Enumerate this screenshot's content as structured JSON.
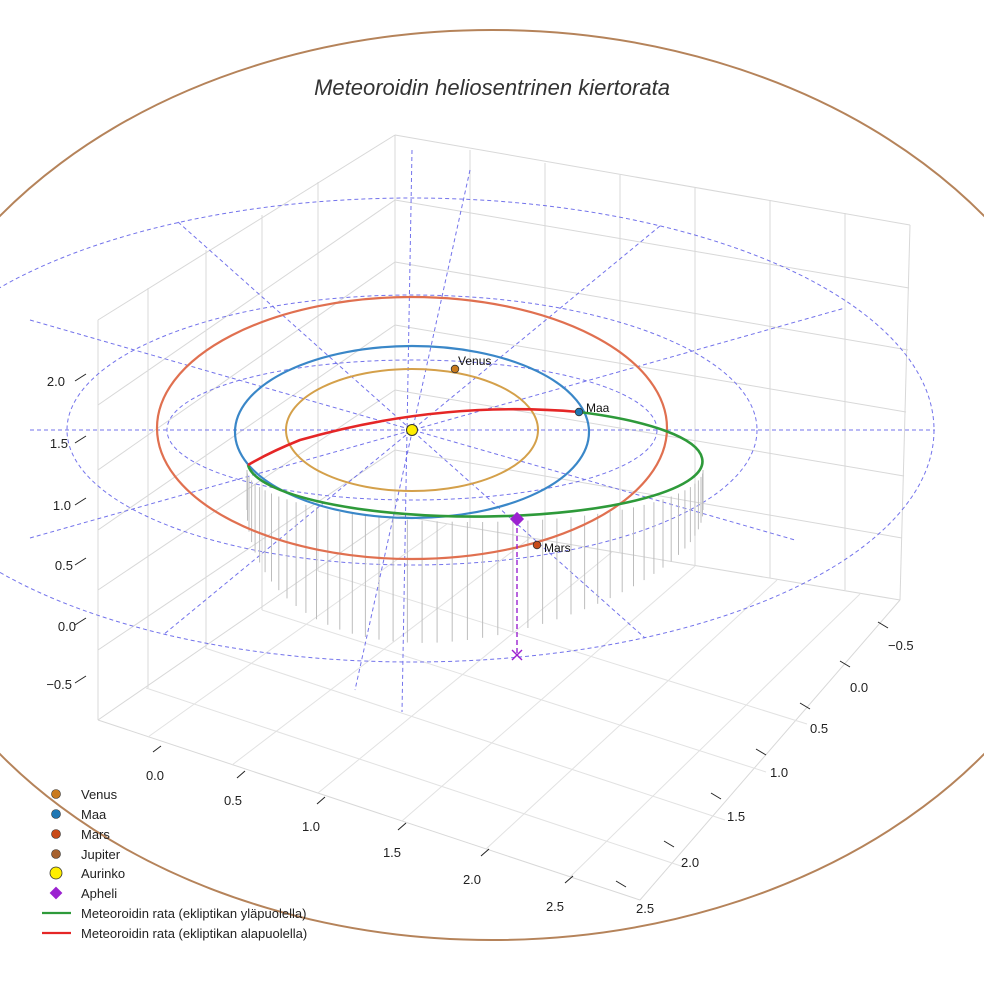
{
  "chart_data": {
    "type": "scatter",
    "title": "Meteoroidin heliosentrinen kiertorata",
    "projection": "3d",
    "grid": true,
    "legend_position": "bottom-left",
    "axes": {
      "x": {
        "ticks": [
          "0.0",
          "0.5",
          "1.0",
          "1.5",
          "2.0",
          "2.5"
        ],
        "range": [
          -0.3,
          2.7
        ]
      },
      "y": {
        "ticks": [
          "−0.5",
          "0.0",
          "0.5",
          "1.0",
          "1.5",
          "2.0",
          "2.5"
        ],
        "range": [
          -0.7,
          2.6
        ]
      },
      "z": {
        "ticks": [
          "−0.5",
          "0.0",
          "0.5",
          "1.0",
          "1.5",
          "2.0"
        ],
        "range": [
          -0.9,
          2.4
        ]
      }
    },
    "planets": [
      {
        "name": "Venus",
        "label": "Venus",
        "orbit_radius_au": 0.72,
        "color": "#d4a04a",
        "marker_color": "#c97a1e"
      },
      {
        "name": "Maa",
        "label": "Maa",
        "orbit_radius_au": 1.0,
        "color": "#3a87c8",
        "marker_color": "#1f77b4"
      },
      {
        "name": "Mars",
        "label": "Mars",
        "orbit_radius_au": 1.52,
        "color": "#e07050",
        "marker_color": "#c84a18"
      },
      {
        "name": "Jupiter",
        "label": "",
        "orbit_radius_au": 5.2,
        "color": "#b5835a",
        "marker_color": "#a5612f"
      }
    ],
    "sun": {
      "name": "Aurinko",
      "color": "#ffee00"
    },
    "aphelion": {
      "name": "Apheli",
      "color": "#9b22d0"
    },
    "meteoroid": {
      "above_ecliptic": {
        "name": "Meteoroidin rata (ekliptikan yläpuolella)",
        "color": "#2e9a3a"
      },
      "below_ecliptic": {
        "name": "Meteoroidin rata (ekliptikan alapuolella)",
        "color": "#e52626"
      }
    },
    "reference_grid_color": "#5b5be8"
  },
  "legend": [
    {
      "label": "Venus",
      "color": "#c97a1e",
      "kind": "dot"
    },
    {
      "label": "Maa",
      "color": "#1f77b4",
      "kind": "dot"
    },
    {
      "label": "Mars",
      "color": "#c84a18",
      "kind": "dot"
    },
    {
      "label": "Jupiter",
      "color": "#a5612f",
      "kind": "dot"
    },
    {
      "label": "Aurinko",
      "color": "#ffee00",
      "kind": "sun"
    },
    {
      "label": "Apheli",
      "color": "#9b22d0",
      "kind": "diamond"
    },
    {
      "label": "Meteoroidin rata (ekliptikan yläpuolella)",
      "color": "#2e9a3a",
      "kind": "line"
    },
    {
      "label": "Meteoroidin rata (ekliptikan alapuolella)",
      "color": "#e52626",
      "kind": "line"
    }
  ]
}
